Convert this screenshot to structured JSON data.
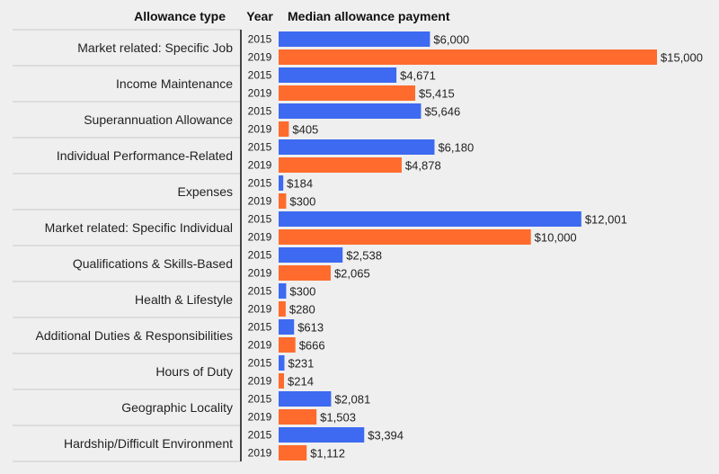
{
  "chart_data": {
    "type": "bar",
    "orientation": "horizontal",
    "headers": {
      "category": "Allowance type",
      "year": "Year",
      "value": "Median allowance payment"
    },
    "years": [
      "2015",
      "2019"
    ],
    "colors": {
      "2015": "#3d6af0",
      "2019": "#fe6b2c"
    },
    "categories": [
      "Market related: Specific Job",
      "Income Maintenance",
      "Superannuation Allowance",
      "Individual Performance-Related",
      "Expenses",
      "Market related: Specific Individual",
      "Qualifications & Skills-Based",
      "Health & Lifestyle",
      "Additional Duties & Responsibilities",
      "Hours of Duty",
      "Geographic Locality",
      "Hardship/Difficult Environment"
    ],
    "series": [
      {
        "name": "2015",
        "values": [
          6000,
          4671,
          5646,
          6180,
          184,
          12001,
          2538,
          300,
          613,
          231,
          2081,
          3394
        ],
        "labels": [
          "$6,000",
          "$4,671",
          "$5,646",
          "$6,180",
          "$184",
          "$12,001",
          "$2,538",
          "$300",
          "$613",
          "$231",
          "$2,081",
          "$3,394"
        ]
      },
      {
        "name": "2019",
        "values": [
          15000,
          5415,
          405,
          4878,
          300,
          10000,
          2065,
          280,
          666,
          214,
          1503,
          1112
        ],
        "labels": [
          "$15,000",
          "$5,415",
          "$405",
          "$4,878",
          "$300",
          "$10,000",
          "$2,065",
          "$280",
          "$666",
          "$214",
          "$1,503",
          "$1,112"
        ]
      }
    ],
    "xlim": [
      0,
      15000
    ]
  }
}
